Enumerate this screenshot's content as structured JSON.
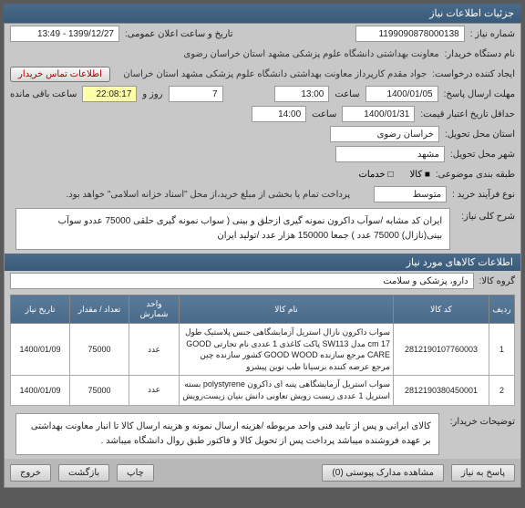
{
  "header": {
    "title": "جزئیات اطلاعات نیاز"
  },
  "top": {
    "need_no_label": "شماره نیاز :",
    "need_no": "1199090878000138",
    "announce_label": "تاریخ و ساعت اعلان عمومی:",
    "announce_value": "1399/12/27 - 13:49",
    "buyer_label": "نام دستگاه خریدار:",
    "buyer_value": "معاونت بهداشتی دانشگاه علوم پزشکی مشهد استان خراسان رضوی",
    "creator_label": "ایجاد کننده درخواست:",
    "creator_value": "جواد مقدم کارپرداز معاونت بهداشتی دانشگاه علوم پزشکی مشهد استان خراسان",
    "contact_btn": "اطلاعات تماس خریدار",
    "deadline_label": "مهلت ارسال پاسخ:",
    "deadline_date": "1400/01/05",
    "saat_label": "ساعت",
    "deadline_time": "13:00",
    "days_value": "7",
    "rooz_label": "روز و",
    "remain_time": "22:08:17",
    "remain_label": "ساعت باقی مانده",
    "validity_label": "حداقل تاریخ اعتبار قیمت:",
    "validity_date": "1400/01/31",
    "validity_time": "14:00",
    "deliver_place_label": "استان محل تحویل:",
    "deliver_place": "خراسان رضوی",
    "deliver_city_label": "شهر محل تحویل:",
    "deliver_city": "مشهد",
    "budget_label": "طبقه بندی موضوعی:",
    "kala_label": "کالا",
    "khadamat_label": "خدمات",
    "buy_type_label": "نوع فرآیند خرید :",
    "buy_type": "متوسط",
    "payment_note": "پرداخت تمام یا بخشی از مبلغ خرید،از محل \"اسناد خزانه اسلامی\" خواهد بود."
  },
  "desc": {
    "title_label": "شرح کلی نیاز:",
    "text": "ایران کد مشابه /سوآب داکرون نمونه گیری ازحلق و بینی ( سواب نمونه گیری حلقی 75000 عددو سوآب بینی(نازال) 75000 عدد ) جمعا 150000 هزار عدد /تولید ایران"
  },
  "items": {
    "section_title": "اطلاعات کالاهای مورد نیاز",
    "group_label": "گروه کالا:",
    "group_value": "دارو، پزشکی و سلامت",
    "columns": [
      "ردیف",
      "کد کالا",
      "نام کالا",
      "واحد شمارش",
      "تعداد / مقدار",
      "تاریخ نیاز"
    ],
    "rows": [
      {
        "idx": "1",
        "code": "2812190107760003",
        "name": "سواب داکرون نازال استریل آزمایشگاهی جنس پلاستیک طول cm 17 مدل SW113 پاکت کاغذی 1 عددی نام تجارتی GOOD CARE مرجع سازنده GOOD WOOD کشور سازنده چین مرجع عرضه کننده برسیانا طب نوین پیشرو",
        "unit": "عدد",
        "qty": "75000",
        "date": "1400/01/09"
      },
      {
        "idx": "2",
        "code": "2812190380450001",
        "name": "سواب استریل آزمایشگاهی پنبه ای داکرون polystyrene بسته استریل 1 عددی زیست رویش تعاونی دانش بنیان زیست‌رویش",
        "unit": "عدد",
        "qty": "75000",
        "date": "1400/01/09"
      }
    ]
  },
  "notes": {
    "label": "توضیحات خریدار:",
    "text": "کالای ایرانی و پس از تایید فنی واحد مربوطه  /هزینه ارسال نمونه و هزینه ارسال کالا تا انبار معاونت بهداشتی بر عهده فروشنده میباشد پرداخت پس از تحویل کالا و فاکتور طبق روال دانشگاه میباشد ."
  },
  "footer": {
    "reply_btn": "پاسخ به نیاز",
    "attach_btn": "مشاهده مدارک پیوستی (0)",
    "print_btn": "چاپ",
    "back_btn": "بازگشت",
    "exit_btn": "خروج"
  }
}
